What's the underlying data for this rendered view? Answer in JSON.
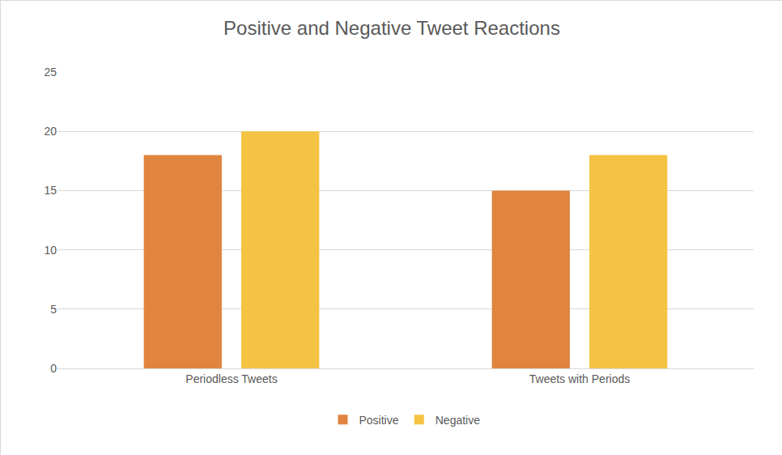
{
  "chart_data": {
    "type": "bar",
    "title": "Positive and Negative Tweet Reactions",
    "categories": [
      "Periodless Tweets",
      "Tweets with Periods"
    ],
    "series": [
      {
        "name": "Positive",
        "color": "#e0843f",
        "values": [
          18,
          15
        ]
      },
      {
        "name": "Negative",
        "color": "#f5c343",
        "values": [
          20,
          18
        ]
      }
    ],
    "ylim": [
      0,
      25
    ],
    "yticks": [
      0,
      5,
      10,
      15,
      20,
      25
    ],
    "grid": true,
    "legend": "bottom"
  }
}
